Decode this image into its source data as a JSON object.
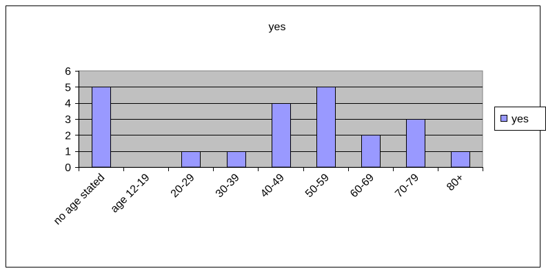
{
  "chart_data": {
    "type": "bar",
    "title": "yes",
    "categories": [
      "no age stated",
      "age 12-19",
      "20-29",
      "30-39",
      "40-49",
      "50-59",
      "60-69",
      "70-79",
      "80+"
    ],
    "series": [
      {
        "name": "yes",
        "values": [
          5,
          0,
          1,
          1,
          4,
          5,
          2,
          3,
          1
        ],
        "color": "#9999FF"
      }
    ],
    "y_ticks": [
      "0",
      "1",
      "2",
      "3",
      "4",
      "5",
      "6"
    ],
    "ylim": [
      0,
      6
    ],
    "grid": true,
    "plot_background": "#C0C0C0",
    "legend": {
      "placement": "right",
      "label": "yes"
    }
  }
}
